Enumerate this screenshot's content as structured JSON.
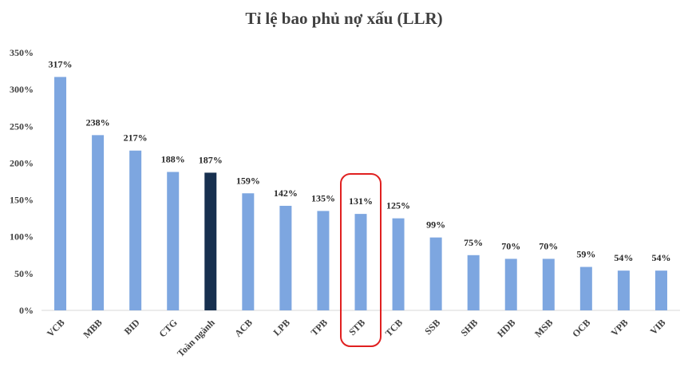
{
  "chart_data": {
    "type": "bar",
    "title": "Tỉ lệ bao phủ nợ xấu (LLR)",
    "xlabel": "",
    "ylabel": "",
    "categories": [
      "VCB",
      "MBB",
      "BID",
      "CTG",
      "Toàn ngành",
      "ACB",
      "LPB",
      "TPB",
      "STB",
      "TCB",
      "SSB",
      "SHB",
      "HDB",
      "MSB",
      "OCB",
      "VPB",
      "VIB"
    ],
    "values": [
      317,
      238,
      217,
      188,
      187,
      159,
      142,
      135,
      131,
      125,
      99,
      75,
      70,
      70,
      59,
      54,
      54
    ],
    "data_labels": [
      "317%",
      "238%",
      "217%",
      "188%",
      "187%",
      "159%",
      "142%",
      "135%",
      "131%",
      "125%",
      "99%",
      "75%",
      "70%",
      "70%",
      "59%",
      "54%",
      "54%"
    ],
    "ylim": [
      0,
      350
    ],
    "yticks": [
      0,
      50,
      100,
      150,
      200,
      250,
      300,
      350
    ],
    "ytick_labels": [
      "0%",
      "50%",
      "100%",
      "150%",
      "200%",
      "250%",
      "300%",
      "350%"
    ],
    "grid": false,
    "legend": "none",
    "highlight_category": "STB",
    "colors": {
      "bar": "#7da6e0",
      "highlight_bar": "#17304f",
      "highlight_outline": "#e02020"
    }
  }
}
